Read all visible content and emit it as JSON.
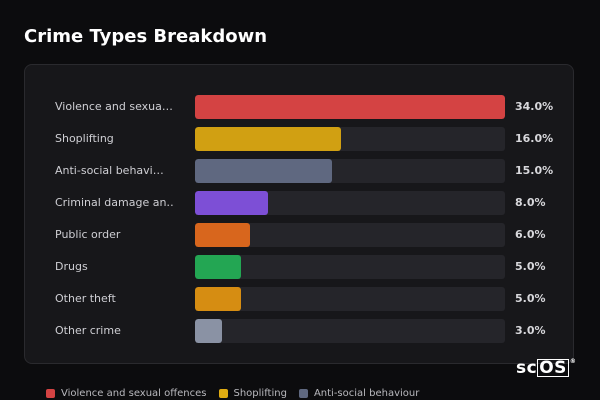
{
  "title": "Crime Types Breakdown",
  "logo": {
    "text_a": "sc",
    "text_b": "OS",
    "mark": "®"
  },
  "chart_data": {
    "type": "bar",
    "orientation": "horizontal",
    "title": "Crime Types Breakdown",
    "xlabel": "",
    "ylabel": "",
    "xlim": [
      0,
      34
    ],
    "grid": false,
    "legend_position": "bottom",
    "categories": [
      {
        "label": "Violence and sexua…",
        "value": 34.0,
        "value_label": "34.0%",
        "color": "#d44343"
      },
      {
        "label": "Shoplifting",
        "value": 16.0,
        "value_label": "16.0%",
        "color": "#d1a012"
      },
      {
        "label": "Anti-social behavi…",
        "value": 15.0,
        "value_label": "15.0%",
        "color": "#5f6880"
      },
      {
        "label": "Criminal damage an…",
        "value": 8.0,
        "value_label": "8.0%",
        "color": "#7d4fd6"
      },
      {
        "label": "Public order",
        "value": 6.0,
        "value_label": "6.0%",
        "color": "#d8661d"
      },
      {
        "label": "Drugs",
        "value": 5.0,
        "value_label": "5.0%",
        "color": "#23a653"
      },
      {
        "label": "Other theft",
        "value": 5.0,
        "value_label": "5.0%",
        "color": "#d68d12"
      },
      {
        "label": "Other crime",
        "value": 3.0,
        "value_label": "3.0%",
        "color": "#8a92a4"
      }
    ],
    "legend": [
      {
        "label": "Violence and sexual offences",
        "color": "#d44343"
      },
      {
        "label": "Shoplifting",
        "color": "#e1ad12"
      },
      {
        "label": "Anti-social behaviour",
        "color": "#5f6880"
      }
    ]
  }
}
